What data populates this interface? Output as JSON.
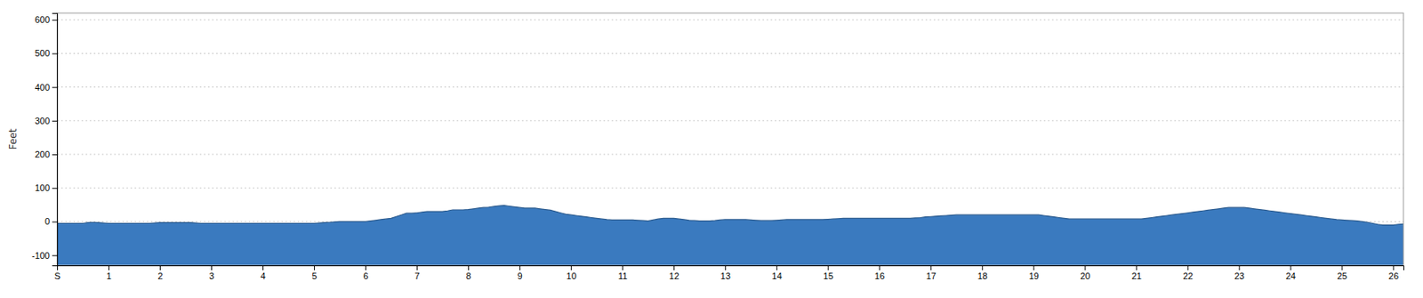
{
  "chart_data": {
    "type": "area",
    "ylabel": "Feet",
    "xlim": [
      0,
      26.2
    ],
    "ylim": [
      -130,
      620
    ],
    "xticks": [
      {
        "value": 0,
        "label": "S"
      },
      1,
      2,
      3,
      4,
      5,
      6,
      7,
      8,
      9,
      10,
      11,
      12,
      13,
      14,
      15,
      16,
      17,
      18,
      19,
      20,
      21,
      22,
      23,
      24,
      25,
      26
    ],
    "yticks": [
      -100,
      0,
      100,
      200,
      300,
      400,
      500,
      600
    ],
    "grid": true,
    "color": "#3a7abf",
    "x": [
      0.0,
      0.1,
      0.2,
      0.3,
      0.4,
      0.5,
      0.6,
      0.7,
      0.8,
      0.9,
      1.0,
      1.1,
      1.2,
      1.3,
      1.4,
      1.5,
      1.6,
      1.7,
      1.8,
      1.9,
      2.0,
      2.1,
      2.2,
      2.3,
      2.4,
      2.5,
      2.6,
      2.7,
      2.8,
      2.9,
      3.0,
      3.1,
      3.2,
      3.3,
      3.4,
      3.5,
      3.6,
      3.7,
      3.8,
      3.9,
      4.0,
      4.1,
      4.2,
      4.3,
      4.4,
      4.5,
      4.6,
      4.7,
      4.8,
      4.9,
      5.0,
      5.1,
      5.2,
      5.3,
      5.4,
      5.5,
      5.6,
      5.7,
      5.8,
      5.9,
      6.0,
      6.1,
      6.2,
      6.3,
      6.4,
      6.5,
      6.6,
      6.7,
      6.8,
      6.9,
      7.0,
      7.1,
      7.2,
      7.3,
      7.4,
      7.5,
      7.6,
      7.7,
      7.8,
      7.9,
      8.0,
      8.1,
      8.2,
      8.3,
      8.4,
      8.5,
      8.6,
      8.7,
      8.8,
      8.9,
      9.0,
      9.1,
      9.2,
      9.3,
      9.4,
      9.5,
      9.6,
      9.7,
      9.8,
      9.9,
      10.0,
      10.1,
      10.2,
      10.3,
      10.4,
      10.5,
      10.6,
      10.7,
      10.8,
      10.9,
      11.0,
      11.1,
      11.2,
      11.3,
      11.4,
      11.5,
      11.6,
      11.7,
      11.8,
      11.9,
      12.0,
      12.1,
      12.2,
      12.3,
      12.4,
      12.5,
      12.6,
      12.7,
      12.8,
      12.9,
      13.0,
      13.1,
      13.2,
      13.3,
      13.4,
      13.5,
      13.6,
      13.7,
      13.8,
      13.9,
      14.0,
      14.1,
      14.2,
      14.3,
      14.4,
      14.5,
      14.6,
      14.7,
      14.8,
      14.9,
      15.0,
      15.1,
      15.2,
      15.3,
      15.4,
      15.5,
      15.6,
      15.7,
      15.8,
      15.9,
      16.0,
      16.1,
      16.2,
      16.3,
      16.4,
      16.5,
      16.6,
      16.7,
      16.8,
      16.9,
      17.0,
      17.1,
      17.2,
      17.3,
      17.4,
      17.5,
      17.6,
      17.7,
      17.8,
      17.9,
      18.0,
      18.1,
      18.2,
      18.3,
      18.4,
      18.5,
      18.6,
      18.7,
      18.8,
      18.9,
      19.0,
      19.1,
      19.2,
      19.3,
      19.4,
      19.5,
      19.6,
      19.7,
      19.8,
      19.9,
      20.0,
      20.1,
      20.2,
      20.3,
      20.4,
      20.5,
      20.6,
      20.7,
      20.8,
      20.9,
      21.0,
      21.1,
      21.2,
      21.3,
      21.4,
      21.5,
      21.6,
      21.7,
      21.8,
      21.9,
      22.0,
      22.1,
      22.2,
      22.3,
      22.4,
      22.5,
      22.6,
      22.7,
      22.8,
      22.9,
      23.0,
      23.1,
      23.2,
      23.3,
      23.4,
      23.5,
      23.6,
      23.7,
      23.8,
      23.9,
      24.0,
      24.1,
      24.2,
      24.3,
      24.4,
      24.5,
      24.6,
      24.7,
      24.8,
      24.9,
      25.0,
      25.1,
      25.2,
      25.3,
      25.4,
      25.5,
      25.6,
      25.7,
      25.8,
      25.9,
      26.0,
      26.1,
      26.2
    ],
    "values": [
      -5,
      -5,
      -5,
      -5,
      -5,
      -5,
      -3,
      -2,
      -3,
      -4,
      -5,
      -5,
      -5,
      -5,
      -5,
      -5,
      -5,
      -5,
      -5,
      -4,
      -3,
      -3,
      -3,
      -3,
      -3,
      -3,
      -3,
      -4,
      -5,
      -5,
      -5,
      -5,
      -5,
      -5,
      -5,
      -5,
      -5,
      -5,
      -5,
      -5,
      -5,
      -5,
      -5,
      -5,
      -5,
      -5,
      -5,
      -5,
      -5,
      -5,
      -5,
      -4,
      -3,
      -2,
      -1,
      0,
      0,
      0,
      0,
      0,
      0,
      2,
      4,
      6,
      8,
      10,
      15,
      20,
      25,
      25,
      26,
      28,
      30,
      30,
      30,
      30,
      32,
      35,
      35,
      35,
      36,
      38,
      40,
      42,
      43,
      45,
      47,
      48,
      46,
      44,
      42,
      40,
      40,
      40,
      38,
      36,
      34,
      30,
      26,
      22,
      20,
      18,
      16,
      14,
      12,
      10,
      8,
      6,
      5,
      5,
      5,
      5,
      5,
      4,
      3,
      2,
      5,
      8,
      10,
      10,
      10,
      8,
      6,
      4,
      3,
      2,
      2,
      2,
      3,
      5,
      6,
      6,
      6,
      6,
      6,
      5,
      4,
      3,
      3,
      3,
      4,
      5,
      6,
      6,
      6,
      6,
      6,
      6,
      6,
      6,
      7,
      8,
      9,
      10,
      10,
      10,
      10,
      10,
      10,
      10,
      10,
      10,
      10,
      10,
      10,
      10,
      10,
      11,
      12,
      14,
      15,
      16,
      17,
      18,
      19,
      20,
      20,
      20,
      20,
      20,
      20,
      20,
      20,
      20,
      20,
      20,
      20,
      20,
      20,
      20,
      20,
      20,
      18,
      16,
      14,
      12,
      10,
      8,
      8,
      8,
      8,
      8,
      8,
      8,
      8,
      8,
      8,
      8,
      8,
      8,
      8,
      8,
      10,
      12,
      14,
      16,
      18,
      20,
      22,
      24,
      26,
      28,
      30,
      32,
      34,
      36,
      38,
      40,
      42,
      42,
      42,
      42,
      40,
      38,
      36,
      34,
      32,
      30,
      28,
      26,
      24,
      22,
      20,
      18,
      16,
      14,
      12,
      10,
      8,
      6,
      5,
      4,
      3,
      2,
      0,
      -2,
      -5,
      -8,
      -10,
      -10,
      -10,
      -8,
      -7
    ]
  }
}
